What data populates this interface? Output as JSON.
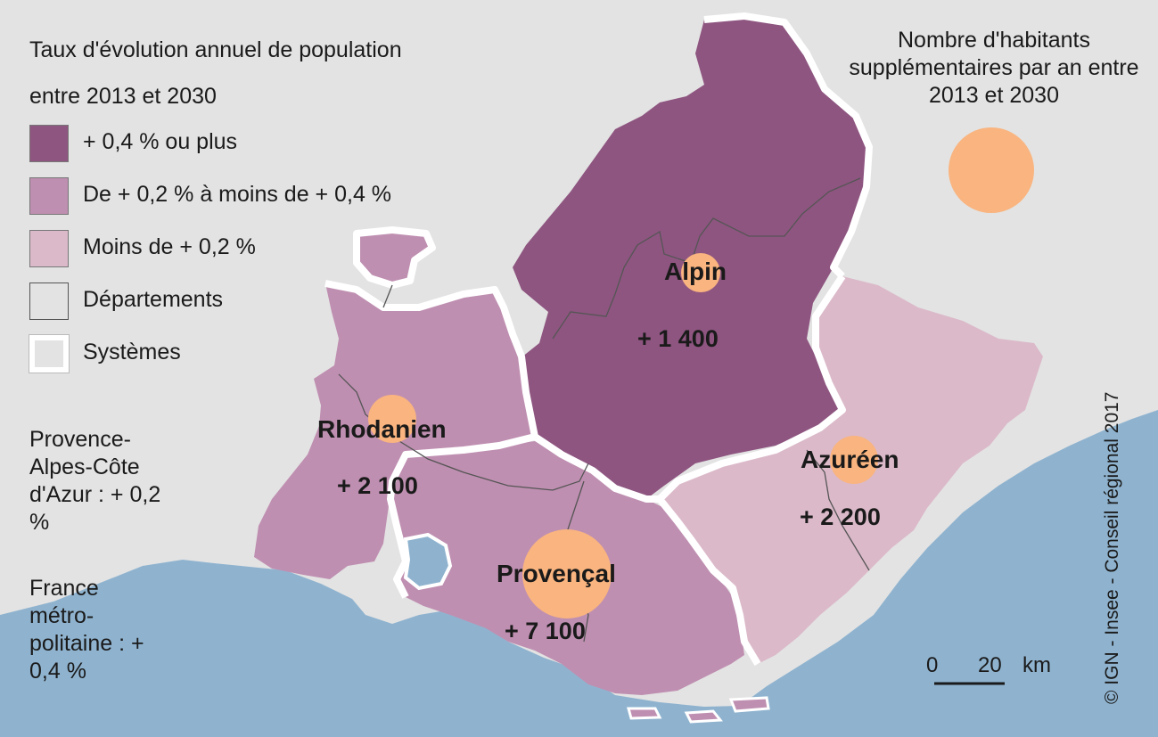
{
  "legend": {
    "title": "Taux d'évolution annuel de population entre 2013 et 2030",
    "items": [
      {
        "label": "+ 0,4 % ou plus",
        "color": "#8e5580"
      },
      {
        "label": "De + 0,2 % à moins de + 0,4 %",
        "color": "#bf8fb1"
      },
      {
        "label": "Moins de + 0,2 %",
        "color": "#dbb9c9"
      },
      {
        "label": "Départements",
        "color": "#e3e3e3"
      },
      {
        "label": "Systèmes",
        "color": "#e3e3e3"
      }
    ]
  },
  "stats": {
    "region": "Provence-Alpes-Côte d'Azur : + 0,2 %",
    "france": "France métro-politaine : + 0,4 %"
  },
  "bubble_legend": {
    "title": "Nombre d'habitants supplémentaires par an entre 2013 et 2030",
    "color": "#f9b47f"
  },
  "regions": [
    {
      "name": "Alpin",
      "value": "+ 1 400"
    },
    {
      "name": "Rhodanien",
      "value": "+ 2 100"
    },
    {
      "name": "Azuréen",
      "value": "+ 2 200"
    },
    {
      "name": "Provençal",
      "value": "+ 7 100"
    }
  ],
  "scale": {
    "start": "0",
    "end": "20",
    "unit": "km"
  },
  "credit": "© IGN - Insee - Conseil régional 2017",
  "colors": {
    "sea": "#8fb3cf",
    "land": "#e3e3e3",
    "bubble": "#f9b47f"
  }
}
